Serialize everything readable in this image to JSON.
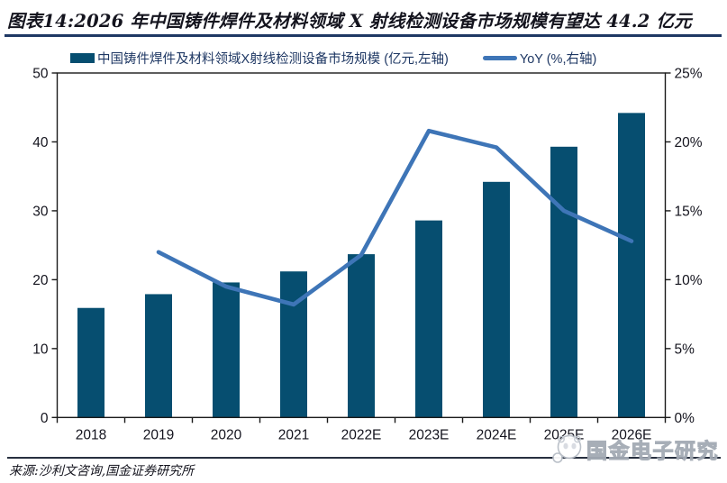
{
  "header": {
    "title": "图表14:2026 年中国铸件焊件及材料领域 X 射线检测设备市场规模有望达 44.2 亿元"
  },
  "legend": {
    "items": [
      {
        "label": "中国铸件焊件及材料领域X射线检测设备市场规模 (亿元,左轴)",
        "series": "market-size-bar"
      },
      {
        "label": "YoY (%,右轴)",
        "series": "yoy-line"
      }
    ]
  },
  "footer": {
    "source": "来源:沙利文咨询,国金证券研究所",
    "watermark": "国金电子研究"
  },
  "colors": {
    "bar": "#064E70",
    "line": "#3E75B7",
    "navy": "#1F3864",
    "ink": "#14141E",
    "axis": "#1A1A1A",
    "rule": "#27303F",
    "watermark": "#A3AAB4"
  },
  "chart_data": {
    "type": "bar+line",
    "title": "2026 年中国铸件焊件及材料领域 X 射线检测设备市场规模有望达 44.2 亿元",
    "categories": [
      "2018",
      "2019",
      "2020",
      "2021",
      "2022E",
      "2023E",
      "2024E",
      "2025E",
      "2026E"
    ],
    "series": [
      {
        "name": "中国铸件焊件及材料领域X射线检测设备市场规模",
        "type": "bar",
        "axis": "left",
        "unit": "亿元",
        "values": [
          15.9,
          17.9,
          19.6,
          21.2,
          23.7,
          28.6,
          34.2,
          39.3,
          44.2
        ]
      },
      {
        "name": "YoY",
        "type": "line",
        "axis": "right",
        "unit": "%",
        "values": [
          null,
          12.0,
          9.5,
          8.2,
          11.8,
          20.8,
          19.6,
          15.0,
          12.8
        ]
      }
    ],
    "left_axis": {
      "min": 0,
      "max": 50,
      "ticks": [
        0,
        10,
        20,
        30,
        40,
        50
      ],
      "suffix": ""
    },
    "right_axis": {
      "min": 0,
      "max": 25,
      "ticks": [
        0,
        5,
        10,
        15,
        20,
        25
      ],
      "suffix": "%"
    },
    "grid": false,
    "legend_position": "top"
  }
}
